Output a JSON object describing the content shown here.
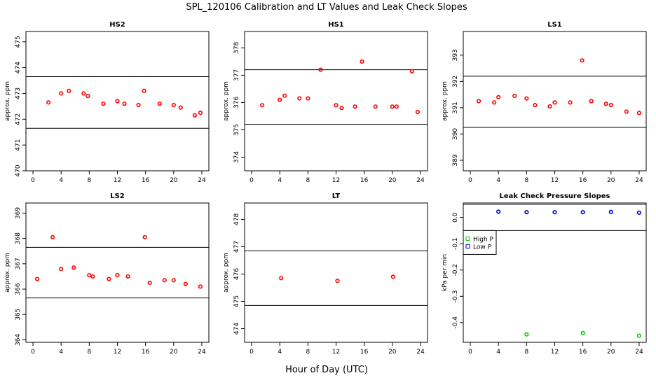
{
  "figure": {
    "title": "SPL_120106  Calibration and LT Values and Leak Check Slopes",
    "xlabel": "Hour of Day (UTC)"
  },
  "chart_data": [
    {
      "type": "scatter",
      "title": "HS2",
      "ylabel": "approx. ppm",
      "xlim": [
        -1,
        25
      ],
      "ylim": [
        470,
        475.4
      ],
      "xticks": [
        0,
        4,
        8,
        12,
        16,
        20,
        24
      ],
      "yticks": [
        470,
        471,
        472,
        473,
        474,
        475
      ],
      "hlines": [
        473.65,
        471.65
      ],
      "series": [
        {
          "color": "#ff0000",
          "x": [
            2.2,
            4.0,
            5.1,
            7.2,
            7.8,
            10.0,
            12.0,
            13.0,
            15.0,
            15.8,
            18.0,
            20.0,
            21.0,
            23.0,
            23.8
          ],
          "y": [
            472.65,
            473.0,
            473.1,
            473.0,
            472.9,
            472.6,
            472.7,
            472.6,
            472.55,
            473.1,
            472.6,
            472.55,
            472.45,
            472.15,
            472.25
          ]
        }
      ]
    },
    {
      "type": "scatter",
      "title": "HS1",
      "ylabel": "approx. ppm",
      "xlim": [
        -1,
        25
      ],
      "ylim": [
        373.5,
        378.6
      ],
      "xticks": [
        0,
        4,
        8,
        12,
        16,
        20,
        24
      ],
      "yticks": [
        374,
        375,
        376,
        377,
        378
      ],
      "hlines": [
        377.2,
        375.2
      ],
      "series": [
        {
          "color": "#ff0000",
          "x": [
            1.5,
            4.0,
            4.7,
            6.8,
            8.0,
            9.8,
            12.0,
            12.8,
            14.7,
            15.7,
            17.6,
            20.0,
            20.6,
            22.8,
            23.6
          ],
          "y": [
            375.9,
            376.1,
            376.25,
            376.15,
            376.15,
            377.2,
            375.9,
            375.8,
            375.85,
            377.5,
            375.85,
            375.85,
            375.85,
            377.15,
            375.65
          ]
        }
      ]
    },
    {
      "type": "scatter",
      "title": "LS1",
      "ylabel": "approx. ppm",
      "xlim": [
        -1,
        25
      ],
      "ylim": [
        388.6,
        393.9
      ],
      "xticks": [
        0,
        4,
        8,
        12,
        16,
        20,
        24
      ],
      "yticks": [
        389,
        390,
        391,
        392,
        393
      ],
      "hlines": [
        392.2,
        390.25
      ],
      "series": [
        {
          "color": "#ff0000",
          "x": [
            1.2,
            3.4,
            4.0,
            6.3,
            8.0,
            9.2,
            11.3,
            12.0,
            14.2,
            15.9,
            17.2,
            19.3,
            20.0,
            22.2,
            24.0
          ],
          "y": [
            391.25,
            391.2,
            391.4,
            391.45,
            391.35,
            391.1,
            391.05,
            391.2,
            391.2,
            392.8,
            391.25,
            391.15,
            391.1,
            390.85,
            390.8
          ]
        }
      ]
    },
    {
      "type": "scatter",
      "title": "LS2",
      "ylabel": "approx. ppm",
      "xlim": [
        -1,
        25
      ],
      "ylim": [
        363.9,
        369.4
      ],
      "xticks": [
        0,
        4,
        8,
        12,
        16,
        20,
        24
      ],
      "yticks": [
        364,
        365,
        366,
        367,
        368,
        369
      ],
      "hlines": [
        367.65,
        365.65
      ],
      "series": [
        {
          "color": "#ff0000",
          "x": [
            0.6,
            2.8,
            4.0,
            5.8,
            8.0,
            8.5,
            10.8,
            12.0,
            13.5,
            15.9,
            16.6,
            18.7,
            20.0,
            21.7,
            23.8
          ],
          "y": [
            366.4,
            368.05,
            366.8,
            366.85,
            366.55,
            366.5,
            366.4,
            366.55,
            366.5,
            368.05,
            366.25,
            366.35,
            366.35,
            366.2,
            366.1
          ]
        }
      ]
    },
    {
      "type": "scatter",
      "title": "LT",
      "ylabel": "approx. ppm",
      "xlim": [
        -1,
        25
      ],
      "ylim": [
        473.5,
        478.6
      ],
      "xticks": [
        0,
        4,
        8,
        12,
        16,
        20,
        24
      ],
      "yticks": [
        474,
        475,
        476,
        477,
        478
      ],
      "hlines": [
        476.85,
        474.85
      ],
      "series": [
        {
          "color": "#ff0000",
          "x": [
            4.2,
            12.2,
            20.1
          ],
          "y": [
            475.85,
            475.75,
            475.9
          ]
        }
      ]
    },
    {
      "type": "scatter",
      "title": "Leak Check Pressure Slopes",
      "ylabel": "kPa per min",
      "xlim": [
        -1,
        25
      ],
      "ylim": [
        -0.475,
        0.055
      ],
      "xticks": [
        0,
        4,
        8,
        12,
        16,
        20,
        24
      ],
      "yticks": [
        0.0,
        -0.1,
        -0.2,
        -0.3,
        -0.4
      ],
      "ytick_labels": [
        "0.0",
        "-0.1",
        "-0.2",
        "-0.3",
        "-0.4"
      ],
      "hlines": [
        0.05,
        -0.05
      ],
      "legend": {
        "placement": "left",
        "entries": [
          "High P",
          "Low P"
        ]
      },
      "series": [
        {
          "name": "High P",
          "color": "#00cc00",
          "x": [
            8.0,
            16.0,
            24.0
          ],
          "y": [
            -0.445,
            -0.44,
            -0.45
          ]
        },
        {
          "name": "Low P",
          "color": "#0000cc",
          "x": [
            4.0,
            8.0,
            12.0,
            16.0,
            20.0,
            24.0
          ],
          "y": [
            0.022,
            0.02,
            0.02,
            0.02,
            0.021,
            0.018
          ]
        }
      ]
    }
  ]
}
